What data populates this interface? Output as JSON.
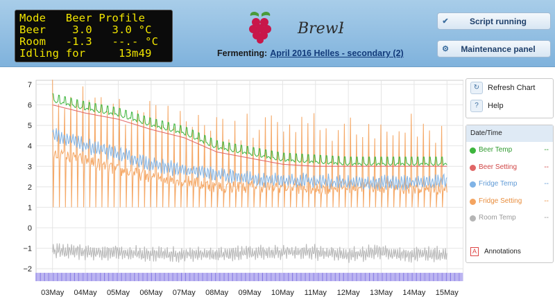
{
  "lcd": {
    "lines": [
      "Mode   Beer Profile",
      "Beer    3.0   3.0 °C",
      "Room   -1.3   --.- °C",
      "Idling for     13m49"
    ]
  },
  "logo": {
    "text": "BrewPi"
  },
  "fermenting": {
    "label": "Fermenting:",
    "link": "April 2016 Helles - secondary (2)"
  },
  "buttons": {
    "script": "Script running",
    "maintenance": "Maintenance panel"
  },
  "side": {
    "refresh": "Refresh Chart",
    "help": "Help"
  },
  "legend": {
    "header": "Date/Time",
    "items": [
      {
        "label": "Beer Temp",
        "value": "--",
        "color": "#3db53d"
      },
      {
        "label": "Beer Setting",
        "value": "--",
        "color": "#e06666"
      },
      {
        "label": "Fridge Temp",
        "value": "--",
        "color": "#7fb3e6"
      },
      {
        "label": "Fridge Setting",
        "value": "--",
        "color": "#f4a460"
      },
      {
        "label": "Room Temp",
        "value": "--",
        "color": "#b5b5b5"
      }
    ],
    "annotations": "Annotations"
  },
  "chart_data": {
    "type": "line",
    "x": [
      "03May",
      "04May",
      "05May",
      "06May",
      "07May",
      "08May",
      "09May",
      "10May",
      "11May",
      "12May",
      "13May",
      "14May",
      "15May"
    ],
    "ylim": [
      -2.4,
      7.2
    ],
    "yticks": [
      7,
      6,
      5,
      4,
      3,
      2,
      1,
      0,
      -1,
      -2
    ],
    "grid": true,
    "series": [
      {
        "name": "Beer Temp",
        "color": "#3db53d",
        "values": [
          6.2,
          5.8,
          5.5,
          5.0,
          4.6,
          3.9,
          3.6,
          3.3,
          3.2,
          3.1,
          3.1,
          3.1,
          3.1
        ]
      },
      {
        "name": "Beer Setting",
        "color": "#e06666",
        "values": [
          6.0,
          5.6,
          5.3,
          4.8,
          4.4,
          3.7,
          3.4,
          3.1,
          3.0,
          3.0,
          3.0,
          3.0,
          3.0
        ]
      },
      {
        "name": "Fridge Temp",
        "color": "#7fb3e6",
        "values": [
          4.6,
          4.0,
          3.6,
          3.1,
          2.8,
          2.6,
          2.4,
          2.3,
          2.3,
          2.2,
          2.2,
          2.2,
          2.3
        ]
      },
      {
        "name": "Fridge Setting",
        "color": "#f4a460",
        "values": [
          3.6,
          3.3,
          2.8,
          2.5,
          2.3,
          2.0,
          2.0,
          2.0,
          1.9,
          2.0,
          2.0,
          1.9,
          1.9
        ]
      },
      {
        "name": "Room Temp",
        "color": "#b5b5b5",
        "values": [
          -1.1,
          -1.2,
          -1.2,
          -1.3,
          -1.3,
          -1.3,
          -1.2,
          -1.2,
          -1.2,
          -1.3,
          -1.2,
          -1.3,
          -1.3
        ]
      }
    ]
  }
}
